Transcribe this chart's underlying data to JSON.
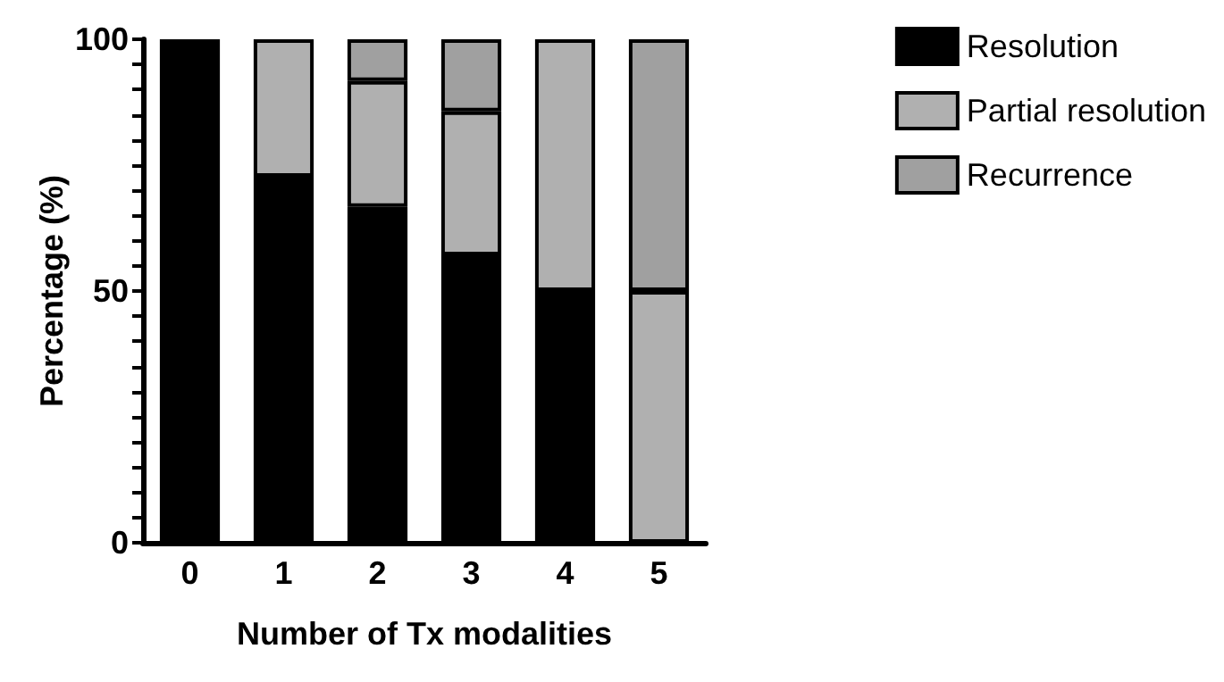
{
  "chart_data": {
    "type": "bar",
    "stacked": true,
    "xlabel": "Number of Tx modalities",
    "ylabel": "Percentage (%)",
    "categories": [
      "0",
      "1",
      "2",
      "3",
      "4",
      "5"
    ],
    "series": [
      {
        "name": "Resolution",
        "color": "#000000",
        "values": [
          100,
          72.7,
          66.7,
          57.1,
          50,
          null
        ]
      },
      {
        "name": "Partial resolution",
        "color": "#b0b0b0",
        "values": [
          null,
          27.3,
          25,
          28.6,
          50,
          50
        ]
      },
      {
        "name": "Recurrence",
        "color": "#a0a0a0",
        "values": [
          null,
          null,
          8.3,
          14.3,
          null,
          50
        ]
      }
    ],
    "ylim": [
      0,
      100
    ],
    "yticks": [
      0,
      {
        "value": 5,
        "label": null
      },
      {
        "value": 10,
        "label": null
      },
      {
        "value": 15,
        "label": null
      },
      {
        "value": 20,
        "label": null
      },
      {
        "value": 25,
        "label": null
      },
      {
        "value": 30,
        "label": null
      },
      {
        "value": 35,
        "label": null
      },
      {
        "value": 40,
        "label": null
      },
      {
        "value": 45,
        "label": null
      },
      50,
      {
        "value": 55,
        "label": null
      },
      {
        "value": 60,
        "label": null
      },
      {
        "value": 65,
        "label": null
      },
      {
        "value": 70,
        "label": null
      },
      {
        "value": 75,
        "label": null
      },
      {
        "value": 80,
        "label": null
      },
      {
        "value": 85,
        "label": null
      },
      {
        "value": 90,
        "label": null
      },
      {
        "value": 95,
        "label": null
      },
      100
    ],
    "grid": false,
    "legend": "right"
  }
}
